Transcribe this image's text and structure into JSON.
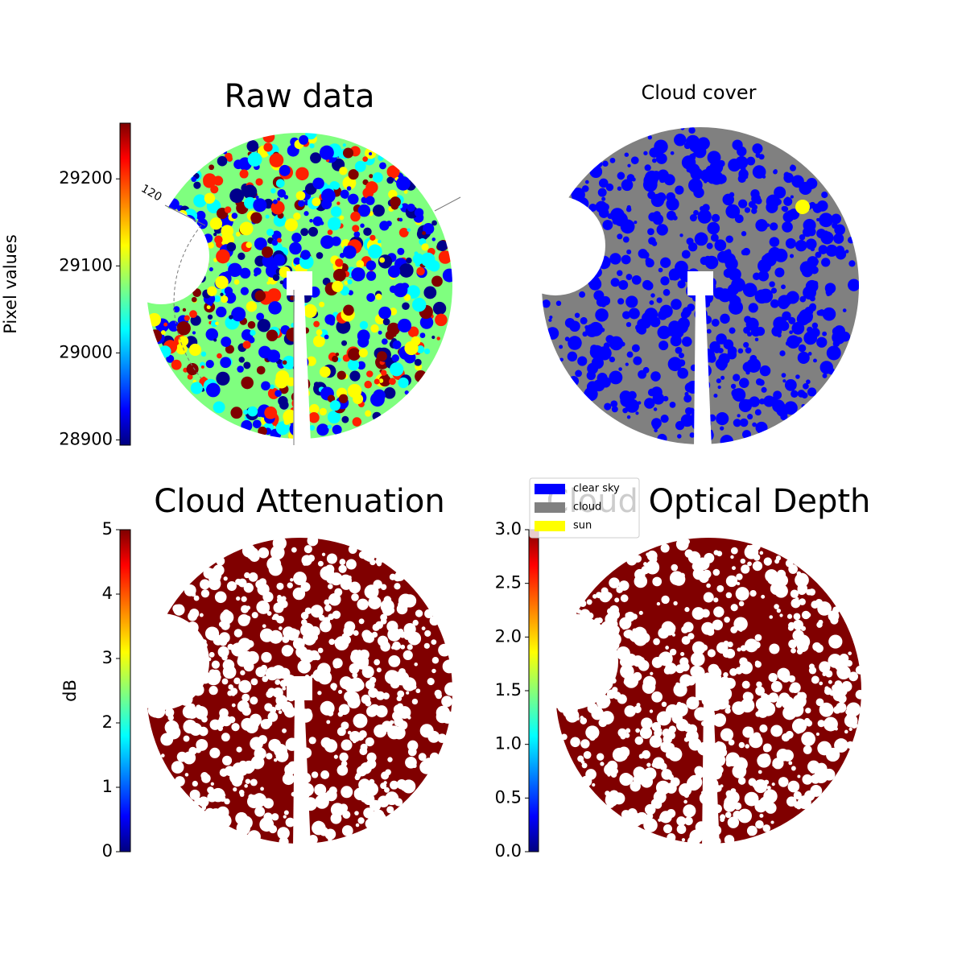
{
  "chart_data": [
    {
      "type": "image",
      "title": "Raw data",
      "colormap": "jet",
      "colorbar_label": "Pixel values",
      "clim": [
        28894,
        29264
      ],
      "cticks": [
        28900,
        29000,
        29100,
        29200
      ],
      "annotations": [
        "120"
      ]
    },
    {
      "type": "image",
      "title": "Cloud cover",
      "legend": [
        {
          "name": "clear sky",
          "color": "#0000ff"
        },
        {
          "name": "cloud",
          "color": "#808080"
        },
        {
          "name": "sun",
          "color": "#ffff00"
        }
      ]
    },
    {
      "type": "image",
      "title": "Cloud Attenuation",
      "colormap": "jet",
      "colorbar_label": "dB",
      "clim": [
        0,
        5
      ],
      "cticks": [
        0,
        1,
        2,
        3,
        4,
        5
      ]
    },
    {
      "type": "image",
      "title": "Cloud Optical Depth",
      "colormap": "jet",
      "clim": [
        0,
        3
      ],
      "cticks": [
        {
          "value": 0,
          "label": "0.0"
        },
        0.5,
        {
          "value": 1,
          "label": "1.0"
        },
        1.5,
        {
          "value": 2,
          "label": "2.0"
        },
        2.5,
        {
          "value": 3,
          "label": "3.0"
        }
      ]
    }
  ]
}
